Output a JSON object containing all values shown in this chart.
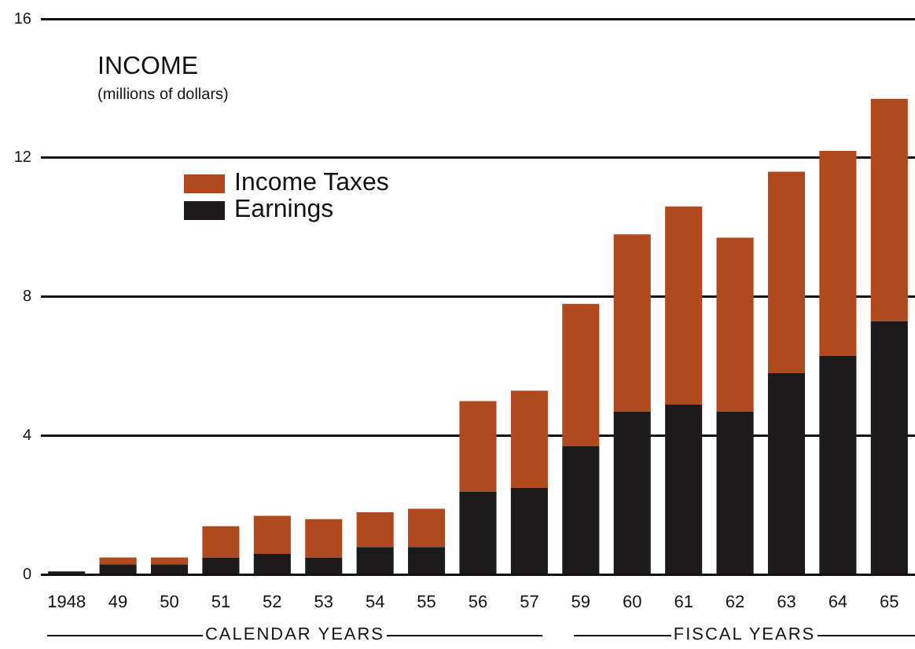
{
  "chart_data": {
    "type": "bar",
    "title": "INCOME",
    "subtitle": "(millions of dollars)",
    "stacked": true,
    "categories": [
      "1948",
      "49",
      "50",
      "51",
      "52",
      "53",
      "54",
      "55",
      "56",
      "57",
      "59",
      "60",
      "61",
      "62",
      "63",
      "64",
      "65"
    ],
    "series": [
      {
        "name": "Earnings",
        "color": "#1c1a1a",
        "values": [
          0.1,
          0.3,
          0.3,
          0.5,
          0.6,
          0.5,
          0.8,
          0.8,
          2.4,
          2.5,
          3.7,
          4.7,
          4.9,
          4.7,
          5.8,
          6.3,
          7.3
        ]
      },
      {
        "name": "Income Taxes",
        "color": "#b04a1e",
        "values": [
          0,
          0.2,
          0.2,
          0.9,
          1.1,
          1.1,
          1.0,
          1.1,
          2.6,
          2.8,
          4.1,
          5.1,
          5.7,
          5.0,
          5.8,
          5.9,
          6.4
        ]
      }
    ],
    "ylim": [
      0,
      16
    ],
    "yticks": [
      0,
      4,
      8,
      12,
      16
    ],
    "grid": "y",
    "legend": "top left",
    "annotations": [
      "CALENDAR YEARS",
      "FISCAL YEARS"
    ]
  }
}
